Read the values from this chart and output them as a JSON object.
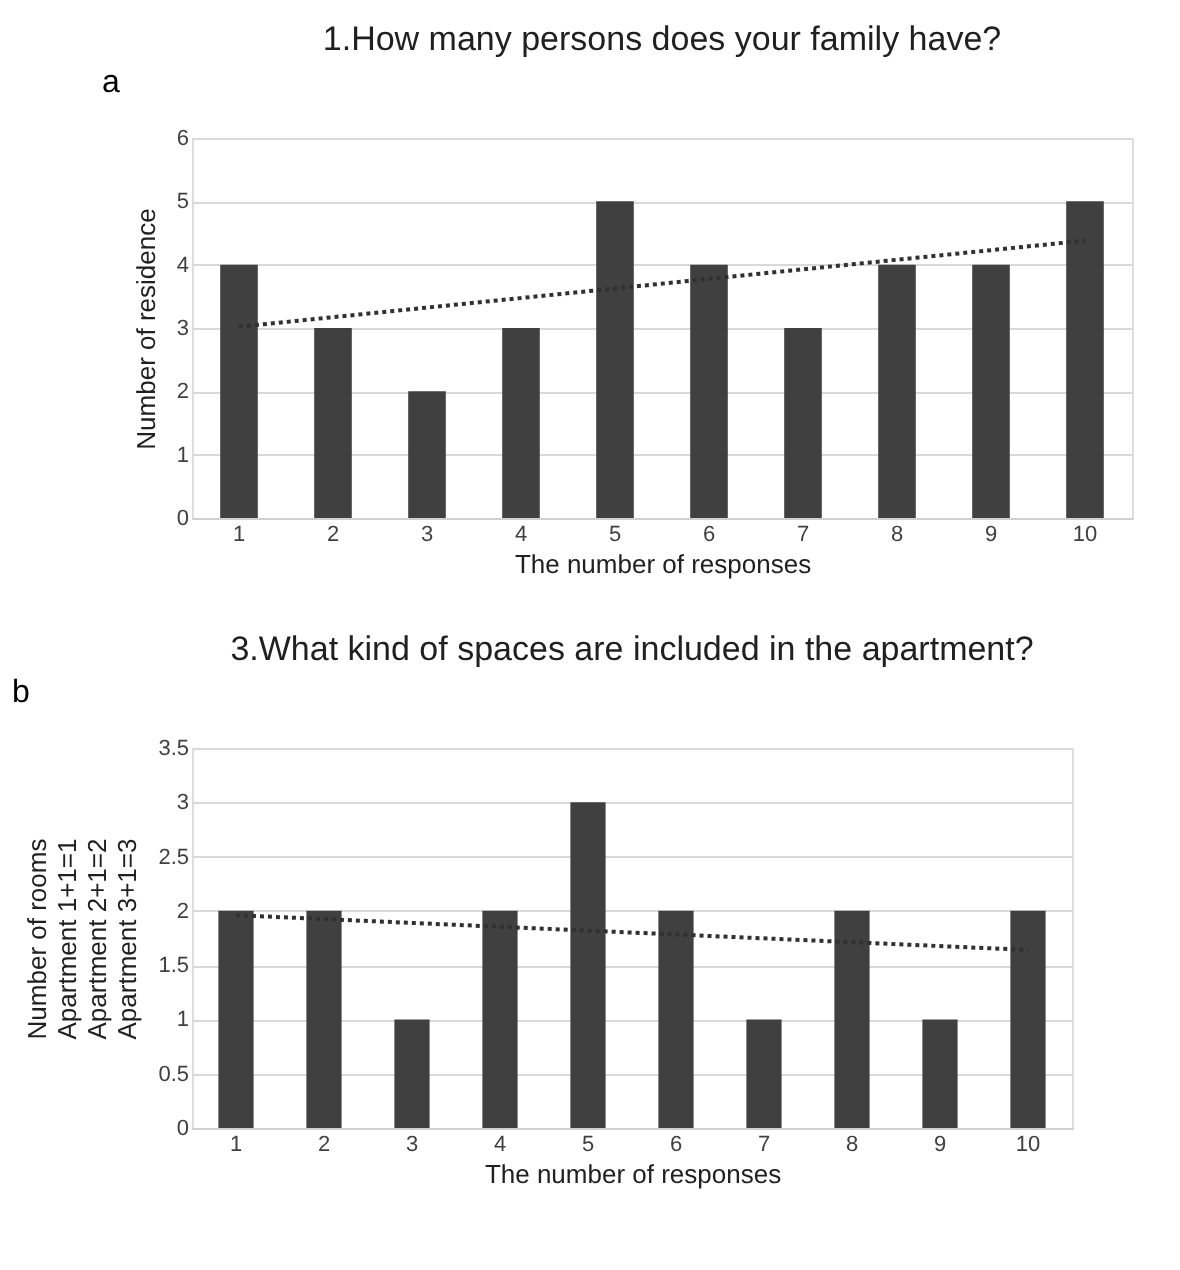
{
  "chart_data": [
    {
      "type": "bar",
      "title": "1.How many persons does your family have?",
      "xlabel": "The number of responses",
      "ylabel": "Number of residence",
      "categories": [
        "1",
        "2",
        "3",
        "4",
        "5",
        "6",
        "7",
        "8",
        "9",
        "10"
      ],
      "series": [
        {
          "type": "bar",
          "color": "#404040",
          "values": [
            4,
            3,
            2,
            3,
            5,
            4,
            3,
            4,
            4,
            5
          ]
        },
        {
          "type": "line",
          "color": "#303030",
          "x": [
            "1",
            "10"
          ],
          "values": [
            3.02,
            4.38
          ],
          "line_style": "dotted",
          "marker": "none"
        }
      ],
      "ylim": [
        0,
        6
      ],
      "yticks": [
        0,
        1,
        2,
        3,
        4,
        5,
        6
      ],
      "grid": "y",
      "annotations": [
        "a"
      ]
    },
    {
      "type": "bar",
      "title": "3.What kind of spaces are included in the apartment?",
      "xlabel": "The number of responses",
      "ylabel": "Number of rooms\nApartment 1+1=1\nApartment 2+1=2\nApartment 3+1=3",
      "categories": [
        "1",
        "2",
        "3",
        "4",
        "5",
        "6",
        "7",
        "8",
        "9",
        "10"
      ],
      "series": [
        {
          "type": "bar",
          "color": "#404040",
          "values": [
            2,
            2,
            1,
            2,
            3,
            2,
            1,
            2,
            1,
            2
          ]
        },
        {
          "type": "line",
          "color": "#303030",
          "x": [
            "1",
            "10"
          ],
          "values": [
            1.96,
            1.64
          ],
          "line_style": "dotted",
          "marker": "none"
        }
      ],
      "ylim": [
        0,
        3.5
      ],
      "yticks": [
        0,
        0.5,
        1,
        1.5,
        2,
        2.5,
        3,
        3.5
      ],
      "grid": "y",
      "annotations": [
        "b"
      ]
    }
  ]
}
